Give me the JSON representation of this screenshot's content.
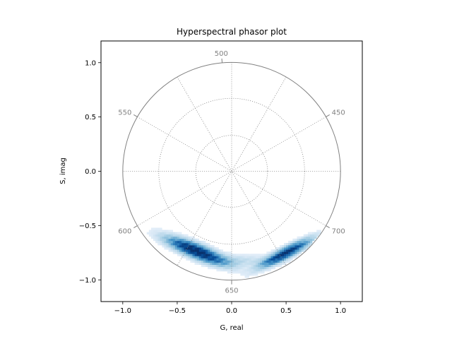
{
  "chart_data": {
    "type": "heatmap",
    "title": "Hyperspectral phasor plot",
    "xlabel": "G, real",
    "ylabel": "S, imag",
    "xlim": [
      -1.2,
      1.2
    ],
    "ylim": [
      -1.2,
      1.2
    ],
    "xticks": [
      -1.0,
      -0.5,
      0.0,
      0.5,
      1.0
    ],
    "yticks": [
      -1.0,
      -0.5,
      0.0,
      0.5,
      1.0
    ],
    "xtick_labels": [
      "−1.0",
      "−0.5",
      "0.0",
      "0.5",
      "1.0"
    ],
    "ytick_labels": [
      "−1.0",
      "−0.5",
      "0.0",
      "0.5",
      "1.0"
    ],
    "colormap": "Blues",
    "unit_circle": {
      "radius": 1.0,
      "color": "#808080"
    },
    "grid_circles": [
      0.33,
      0.67
    ],
    "grid_spoke_angles_deg": [
      0,
      30,
      60,
      90,
      120,
      150
    ],
    "wavelength_ticks": [
      {
        "label": "450",
        "angle_deg": 30
      },
      {
        "label": "500",
        "angle_deg": 95
      },
      {
        "label": "550",
        "angle_deg": 150
      },
      {
        "label": "600",
        "angle_deg": 210
      },
      {
        "label": "650",
        "angle_deg": 270
      },
      {
        "label": "700",
        "angle_deg": 330
      }
    ],
    "clusters": [
      {
        "center": [
          -0.33,
          -0.73
        ],
        "spread_along": 0.2,
        "spread_across": 0.045,
        "angle_deg": -22,
        "weight": 1.0
      },
      {
        "center": [
          0.5,
          -0.75
        ],
        "spread_along": 0.18,
        "spread_across": 0.035,
        "angle_deg": 28,
        "weight": 0.9
      },
      {
        "center": [
          0.08,
          -0.82
        ],
        "spread_along": 0.2,
        "spread_across": 0.04,
        "angle_deg": 0,
        "weight": 0.18
      }
    ],
    "bin_size": 0.02
  }
}
